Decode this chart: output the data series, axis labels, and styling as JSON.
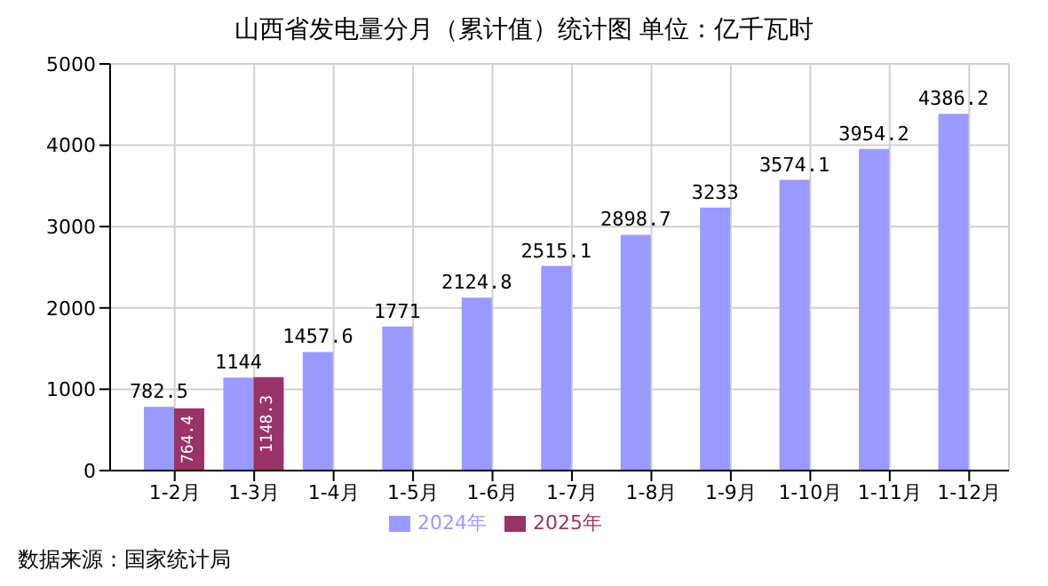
{
  "chart_data": {
    "type": "bar",
    "title": "山西省发电量分月（累计值）统计图 单位：亿千瓦时",
    "categories": [
      "1-2月",
      "1-3月",
      "1-4月",
      "1-5月",
      "1-6月",
      "1-7月",
      "1-8月",
      "1-9月",
      "1-10月",
      "1-11月",
      "1-12月"
    ],
    "series": [
      {
        "name": "2024年",
        "color": "#9999ff",
        "values": [
          782.5,
          1144,
          1457.6,
          1771,
          2124.8,
          2515.1,
          2898.7,
          3233,
          3574.1,
          3954.2,
          4386.2
        ]
      },
      {
        "name": "2025年",
        "color": "#993366",
        "values": [
          764.4,
          1148.3,
          null,
          null,
          null,
          null,
          null,
          null,
          null,
          null,
          null
        ]
      }
    ],
    "ylim": [
      0,
      5000
    ],
    "yticks": [
      0,
      1000,
      2000,
      3000,
      4000,
      5000
    ],
    "grid": true,
    "legend": "bottom",
    "data_labels": true,
    "annotations": [
      "数据来源：国家统计局"
    ]
  }
}
